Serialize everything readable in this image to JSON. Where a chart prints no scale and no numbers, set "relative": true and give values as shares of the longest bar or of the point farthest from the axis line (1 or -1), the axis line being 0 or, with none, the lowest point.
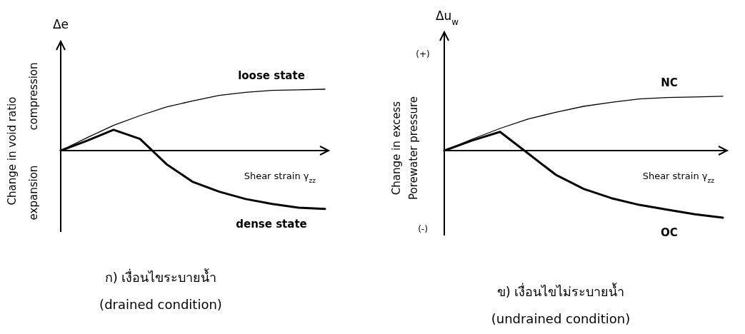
{
  "chart_data": [
    {
      "type": "line",
      "relative": true,
      "title": "ก)  เงื่อนไขระบายน้ำ",
      "subtitle": "(drained condition)",
      "ylabel": "Change in void ratio",
      "xlabel": "Shear strain γ$_{zz}$",
      "categories": [
        null,
        null,
        null,
        null,
        null,
        null,
        null,
        null,
        null,
        null,
        null
      ],
      "series": [
        {
          "name": "loose state",
          "color": "#000000",
          "values": [
            0,
            0.21,
            0.41,
            0.57,
            0.71,
            0.81,
            0.9,
            0.95,
            0.98,
            0.99,
            1.0
          ]
        },
        {
          "name": "dense state",
          "color": "#000000",
          "values": [
            0,
            0.16,
            0.34,
            0.19,
            -0.22,
            -0.51,
            -0.67,
            -0.79,
            -0.87,
            -0.93,
            -0.95
          ]
        }
      ],
      "annotations": [
        "Δe",
        "compression",
        "expansion"
      ]
    },
    {
      "type": "line",
      "relative": true,
      "title": "ข)  เงื่อนไขไม่ระบายน้ำ",
      "subtitle": "(undrained condition)",
      "ylabel": "Change in excess Porewater pressure",
      "xlabel": "Shear strain γ$_{zz}$",
      "categories": [
        null,
        null,
        null,
        null,
        null,
        null,
        null,
        null,
        null,
        null,
        null
      ],
      "series": [
        {
          "name": "NC",
          "color": "#000000",
          "values": [
            0,
            0.17,
            0.33,
            0.47,
            0.57,
            0.66,
            0.72,
            0.77,
            0.79,
            0.8,
            0.81
          ]
        },
        {
          "name": "OC",
          "color": "#000000",
          "values": [
            0,
            0.15,
            0.28,
            -0.04,
            -0.36,
            -0.57,
            -0.71,
            -0.81,
            -0.88,
            -0.95,
            -1.0
          ]
        }
      ],
      "annotations": [
        "Δu$_{w}$",
        "(+)",
        "(-)"
      ]
    }
  ]
}
